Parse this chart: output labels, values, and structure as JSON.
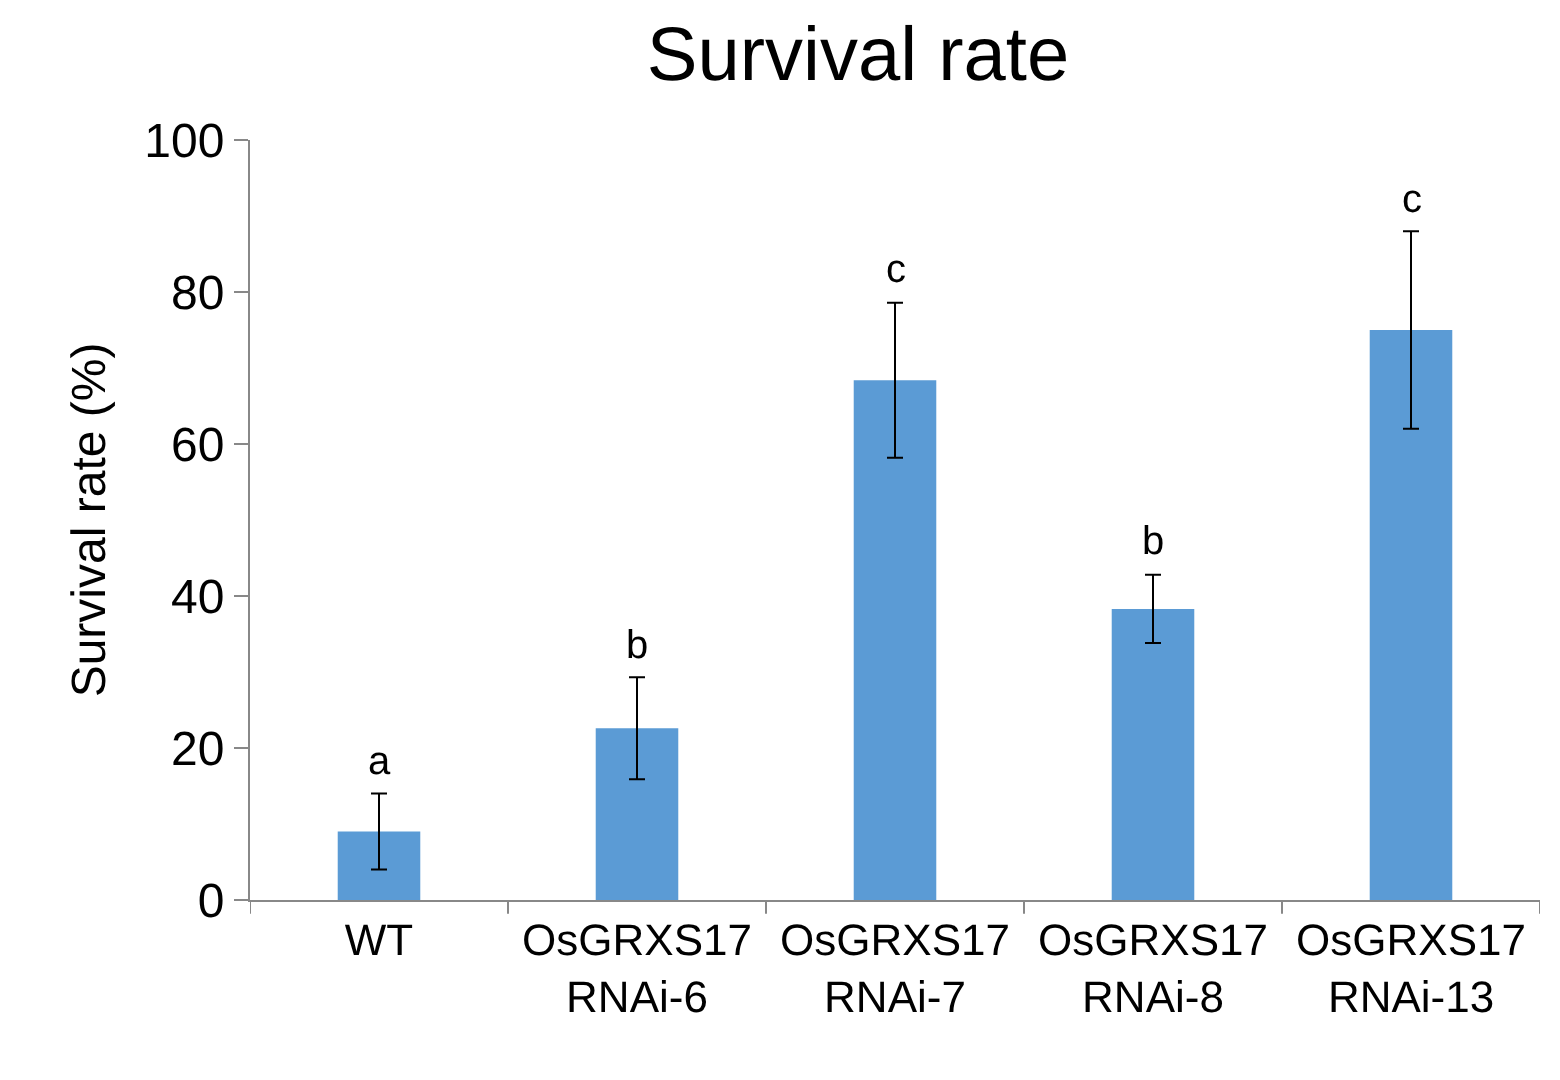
{
  "chart_data": {
    "type": "bar",
    "title": "Survival rate",
    "ylabel": "Survival rate (%)",
    "categories": [
      "WT",
      "OsGRXS17\nRNAi-6",
      "OsGRXS17\nRNAi-7",
      "OsGRXS17\nRNAi-8",
      "OsGRXS17\nRNAi-13"
    ],
    "values": [
      9,
      22.6,
      68.4,
      38.3,
      75
    ],
    "errors": [
      5,
      6.7,
      10.2,
      4.5,
      13
    ],
    "color": "#5b9bd5",
    "ylim": [
      0,
      100
    ],
    "yticks": [
      0,
      20,
      40,
      60,
      80,
      100
    ],
    "grid": false,
    "annotations": [
      {
        "text": "a",
        "x": "WT",
        "y": 14
      },
      {
        "text": "b",
        "x": "OsGRXS17\nRNAi-6",
        "y": 29.3
      },
      {
        "text": "c",
        "x": "OsGRXS17\nRNAi-7",
        "y": 78.6
      },
      {
        "text": "b",
        "x": "OsGRXS17\nRNAi-8",
        "y": 42.8
      },
      {
        "text": "c",
        "x": "OsGRXS17\nRNAi-13",
        "y": 88
      }
    ]
  }
}
